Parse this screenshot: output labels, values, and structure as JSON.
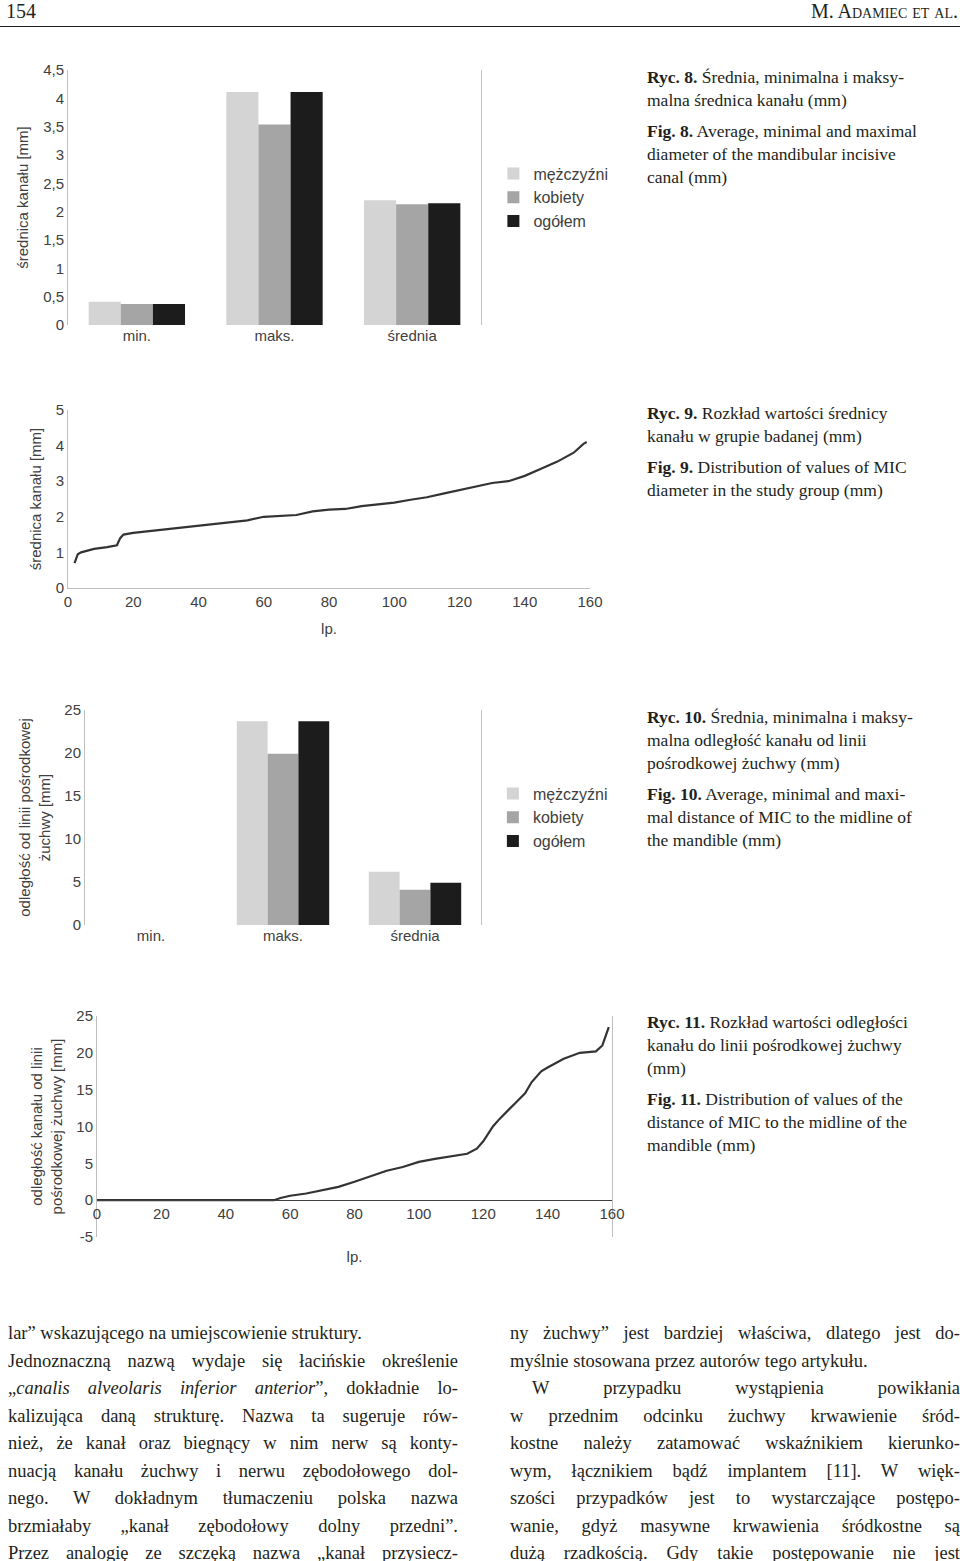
{
  "header": {
    "page": "154",
    "author": "M. Adamiec et al."
  },
  "chart_data": [
    {
      "type": "bar",
      "categories": [
        "min.",
        "maks.",
        "średnia"
      ],
      "series": [
        {
          "name": "mężczyźni",
          "color": "#d4d4d4",
          "values": [
            0.41,
            4.11,
            2.2
          ]
        },
        {
          "name": "kobiety",
          "color": "#a5a5a5",
          "values": [
            0.37,
            3.54,
            2.13
          ]
        },
        {
          "name": "ogółem",
          "color": "#1c1c1c",
          "values": [
            0.37,
            4.11,
            2.15
          ]
        }
      ],
      "y_label": [
        "średnica kanału [mm]"
      ],
      "ylim": [
        0,
        4.5
      ],
      "yticks": [
        0,
        {
          "value": 0.5,
          "label": "0,5"
        },
        1,
        {
          "value": 1.5,
          "label": "1,5"
        },
        2,
        {
          "value": 2.5,
          "label": "2,5"
        },
        3,
        {
          "value": 3.5,
          "label": "3,5"
        },
        4,
        {
          "value": 4.5,
          "label": "4,5"
        }
      ],
      "legend": "right",
      "grid": false
    },
    {
      "type": "line",
      "x": [
        2,
        3,
        4,
        6,
        8,
        12,
        15,
        16,
        17,
        20,
        25,
        30,
        35,
        40,
        45,
        50,
        55,
        60,
        65,
        70,
        75,
        80,
        85,
        90,
        95,
        100,
        105,
        110,
        115,
        120,
        125,
        130,
        135,
        140,
        145,
        150,
        155,
        158,
        159
      ],
      "values": [
        0.7,
        0.95,
        1.0,
        1.05,
        1.1,
        1.15,
        1.2,
        1.4,
        1.5,
        1.55,
        1.6,
        1.65,
        1.7,
        1.77,
        1.8,
        1.85,
        1.9,
        2.0,
        2.02,
        2.05,
        2.15,
        2.2,
        2.22,
        2.3,
        2.35,
        2.4,
        2.48,
        2.55,
        2.65,
        2.75,
        2.85,
        2.95,
        3.0,
        3.15,
        3.35,
        3.55,
        3.8,
        4.05,
        4.1
      ],
      "color": "#333333",
      "x_label": "lp.",
      "y_label": [
        "średnica kanału [mm]"
      ],
      "xlim": [
        0,
        160
      ],
      "xticks": [
        0,
        20,
        40,
        60,
        80,
        100,
        120,
        140,
        160
      ],
      "ylim": [
        0,
        5
      ],
      "yticks": [
        0,
        1,
        2,
        3,
        4,
        5
      ],
      "grid": false
    },
    {
      "type": "bar",
      "categories": [
        "min.",
        "maks.",
        "średnia"
      ],
      "series": [
        {
          "name": "mężczyźni",
          "color": "#d4d4d4",
          "values": [
            0,
            23.7,
            6.2
          ]
        },
        {
          "name": "kobiety",
          "color": "#a5a5a5",
          "values": [
            0,
            19.9,
            4.1
          ]
        },
        {
          "name": "ogółem",
          "color": "#1c1c1c",
          "values": [
            0,
            23.7,
            4.9
          ]
        }
      ],
      "y_label": [
        "odległość od linii pośrodkowej",
        "żuchwy [mm]"
      ],
      "ylim": [
        0,
        25
      ],
      "yticks": [
        0,
        5,
        10,
        15,
        20,
        25
      ],
      "legend": "right",
      "grid": false
    },
    {
      "type": "line",
      "x": [
        0,
        10,
        20,
        30,
        40,
        50,
        55,
        57,
        60,
        65,
        70,
        75,
        80,
        85,
        90,
        95,
        100,
        105,
        110,
        115,
        118,
        120,
        123,
        125,
        130,
        133,
        135,
        138,
        140,
        145,
        150,
        155,
        157,
        159
      ],
      "values": [
        0,
        0,
        0,
        0,
        0,
        0,
        0,
        0.3,
        0.6,
        0.9,
        1.3,
        1.8,
        2.5,
        3.2,
        4.0,
        4.5,
        5.2,
        5.6,
        6.0,
        6.3,
        7.0,
        8.0,
        10.0,
        11.0,
        13.2,
        14.5,
        16.0,
        17.5,
        18.0,
        19.2,
        20.0,
        20.2,
        21.0,
        23.5
      ],
      "color": "#333333",
      "x_label": "lp.",
      "y_label": [
        "odległość kanału od linii",
        "pośrodkowej żuchwy [mm]"
      ],
      "xlim": [
        0,
        160
      ],
      "xticks": [
        0,
        20,
        40,
        60,
        80,
        100,
        120,
        140,
        160
      ],
      "ylim": [
        -5,
        25
      ],
      "yticks": [
        -5,
        0,
        5,
        10,
        15,
        20,
        25
      ],
      "grid": false
    }
  ],
  "captions": [
    {
      "pl": {
        "label": "Ryc. 8.",
        "lines": [
          "Średnia, minimalna i maksy-",
          "malna średnica kanału (mm)"
        ]
      },
      "en": {
        "label": "Fig. 8.",
        "lines": [
          "Average, minimal and maximal",
          "diameter of the mandibular incisive",
          "canal (mm)"
        ]
      }
    },
    {
      "pl": {
        "label": "Ryc. 9.",
        "lines": [
          "Rozkład wartości średnicy",
          "kanału w grupie badanej (mm)"
        ]
      },
      "en": {
        "label": "Fig. 9.",
        "lines": [
          "Distribution of values of MIC",
          "diameter in the study group (mm)"
        ]
      }
    },
    {
      "pl": {
        "label": "Ryc. 10.",
        "lines": [
          "Średnia, minimalna i maksy-",
          "malna odległość kanału od linii",
          "pośrodkowej żuchwy (mm)"
        ]
      },
      "en": {
        "label": "Fig. 10.",
        "lines": [
          "Average, minimal and maxi-",
          "mal distance of MIC to the midline of",
          "the mandible (mm)"
        ]
      }
    },
    {
      "pl": {
        "label": "Ryc. 11.",
        "lines": [
          "Rozkład wartości odległości",
          "kanału do linii pośrodkowej żuchwy",
          "(mm)"
        ]
      },
      "en": {
        "label": "Fig. 11.",
        "lines": [
          "Distribution of values of the",
          "distance of MIC to the midline of the",
          "mandible (mm)"
        ]
      }
    }
  ],
  "body": {
    "columns": [
      [
        {
          "runs": [
            {
              "text": "lar” wskazującego na umiejscowienie struktury.",
              "italic": false
            }
          ],
          "paragraph_end": true
        },
        {
          "runs": [
            {
              "text": "Jednoznaczną nazwą wydaje się łacińskie określenie",
              "italic": false
            }
          ]
        },
        {
          "runs": [
            {
              "text": "„",
              "italic": false
            },
            {
              "text": "canalis alveolaris inferior anterior",
              "italic": true
            },
            {
              "text": "”, dokładnie lo-",
              "italic": false
            }
          ]
        },
        {
          "runs": [
            {
              "text": "kalizująca daną strukturę. Nazwa ta sugeruje rów-",
              "italic": false
            }
          ]
        },
        {
          "runs": [
            {
              "text": "nież, że kanał oraz biegnący w nim nerw są konty-",
              "italic": false
            }
          ]
        },
        {
          "runs": [
            {
              "text": "nuacją kanału żuchwy i nerwu zębodołowego dol-",
              "italic": false
            }
          ]
        },
        {
          "runs": [
            {
              "text": "nego. W dokładnym tłumaczeniu polska nazwa",
              "italic": false
            }
          ]
        },
        {
          "runs": [
            {
              "text": "brzmiałaby „kanał zębodołowy dolny przedni”.",
              "italic": false
            }
          ]
        },
        {
          "runs": [
            {
              "text": "Przez analogię ze szczęką nazwa „kanał przysiecz-",
              "italic": false
            }
          ]
        }
      ],
      [
        {
          "runs": [
            {
              "text": "ny żuchwy” jest bardziej właściwa, dlatego jest do-",
              "italic": false
            }
          ]
        },
        {
          "runs": [
            {
              "text": "myślnie stosowana przez autorów tego artykułu.",
              "italic": false
            }
          ],
          "paragraph_end": true
        },
        {
          "runs": [
            {
              "text": "W przypadku wystąpienia powikłania",
              "italic": false
            }
          ],
          "indent": true
        },
        {
          "runs": [
            {
              "text": "w przednim odcinku żuchwy krwawienie śród-",
              "italic": false
            }
          ]
        },
        {
          "runs": [
            {
              "text": "kostne należy zatamować wskaźnikiem kierunko-",
              "italic": false
            }
          ]
        },
        {
          "runs": [
            {
              "text": "wym, łącznikiem bądź implantem [11]. W więk-",
              "italic": false
            }
          ]
        },
        {
          "runs": [
            {
              "text": "szości przypadków jest to wystarczające postępo-",
              "italic": false
            }
          ]
        },
        {
          "runs": [
            {
              "text": "wanie, gdyż masywne krwawienia śródkostne są",
              "italic": false
            }
          ]
        },
        {
          "runs": [
            {
              "text": "dużą rzadkością. Gdy takie postępowanie nie jest",
              "italic": false
            }
          ]
        }
      ]
    ]
  }
}
